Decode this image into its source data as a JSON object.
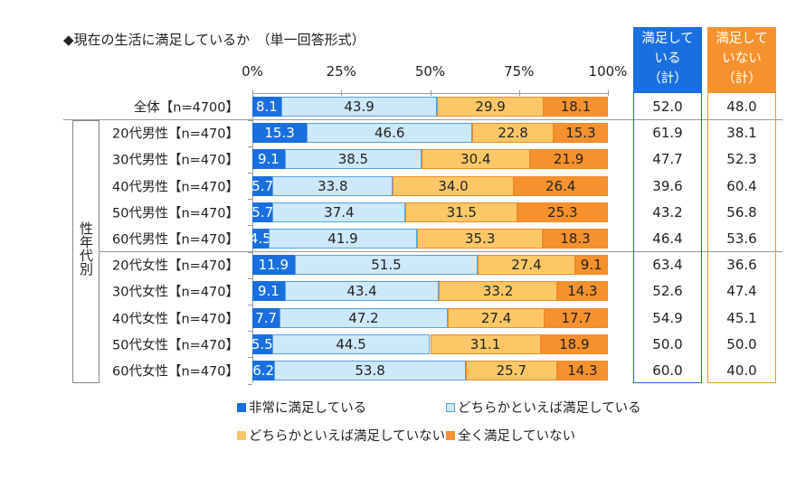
{
  "chart_data": {
    "type": "bar",
    "orientation": "horizontal-stacked-100",
    "title": "◆現在の生活に満足しているか　（単一回答形式）",
    "xlim": [
      0,
      100
    ],
    "x_ticks": [
      "0%",
      "25%",
      "50%",
      "75%",
      "100%"
    ],
    "group_label": "性年代別",
    "categories": [
      "全体【n=4700】",
      "20代男性【n=470】",
      "30代男性【n=470】",
      "40代男性【n=470】",
      "50代男性【n=470】",
      "60代男性【n=470】",
      "20代女性【n=470】",
      "30代女性【n=470】",
      "40代女性【n=470】",
      "50代女性【n=470】",
      "60代女性【n=470】"
    ],
    "series": [
      {
        "name": "非常に満足している",
        "color": "#1a6fe0",
        "values": [
          8.1,
          15.3,
          9.1,
          5.7,
          5.7,
          4.5,
          11.9,
          9.1,
          7.7,
          5.5,
          6.2
        ]
      },
      {
        "name": "どちらかといえば満足している",
        "color": "#cde8fa",
        "values": [
          43.9,
          46.6,
          38.5,
          33.8,
          37.4,
          41.9,
          51.5,
          43.4,
          47.2,
          44.5,
          53.8
        ]
      },
      {
        "name": "どちらかといえば満足していない",
        "color": "#fdc768",
        "values": [
          29.9,
          22.8,
          30.4,
          34.0,
          31.5,
          35.3,
          27.4,
          33.2,
          27.4,
          31.1,
          25.7
        ]
      },
      {
        "name": "全く満足していない",
        "color": "#f5922f",
        "values": [
          18.1,
          15.3,
          21.9,
          26.4,
          25.3,
          18.3,
          9.1,
          14.3,
          17.7,
          18.9,
          14.3
        ]
      }
    ],
    "summary": [
      {
        "header_lines": [
          "満足して",
          "いる",
          "（計）"
        ],
        "color": "#1a6fe0",
        "values": [
          "52.0",
          "61.9",
          "47.7",
          "39.6",
          "43.2",
          "46.4",
          "63.4",
          "52.6",
          "54.9",
          "50.0",
          "60.0"
        ]
      },
      {
        "header_lines": [
          "満足して",
          "いない",
          "（計）"
        ],
        "color": "#f5922f",
        "values": [
          "48.0",
          "38.1",
          "52.3",
          "60.4",
          "56.8",
          "53.6",
          "36.6",
          "47.4",
          "45.1",
          "50.0",
          "40.0"
        ]
      }
    ],
    "legend_placement": "bottom"
  }
}
